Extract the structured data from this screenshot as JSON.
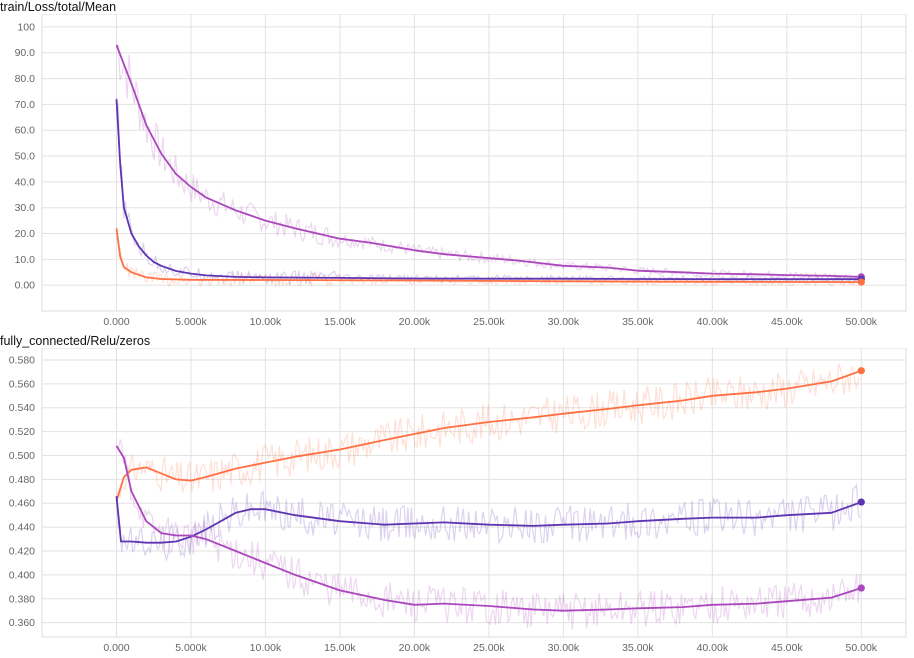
{
  "chart_data": [
    {
      "type": "line",
      "title": "train/Loss/total/Mean",
      "xlim": [
        -5000,
        53000
      ],
      "ylim": [
        -10,
        105
      ],
      "x_ticks": [
        0,
        5000,
        10000,
        15000,
        20000,
        25000,
        30000,
        35000,
        40000,
        45000,
        50000
      ],
      "x_tick_labels": [
        "0.000",
        "5.000k",
        "10.00k",
        "15.00k",
        "20.00k",
        "25.00k",
        "30.00k",
        "35.00k",
        "40.00k",
        "45.00k",
        "50.00k"
      ],
      "y_ticks": [
        0,
        10,
        20,
        30,
        40,
        50,
        60,
        70,
        80,
        90,
        100
      ],
      "y_tick_labels": [
        "0.00",
        "10.0",
        "20.0",
        "30.0",
        "40.0",
        "50.0",
        "60.0",
        "70.0",
        "80.0",
        "90.0",
        "100"
      ],
      "grid": true,
      "series": [
        {
          "color": "#ab47bc",
          "x": [
            0,
            1000,
            2000,
            3000,
            4000,
            5000,
            6000,
            8000,
            10000,
            12000,
            15000,
            17000,
            20000,
            22000,
            25000,
            27000,
            30000,
            33000,
            35000,
            38000,
            40000,
            43000,
            45000,
            48000,
            50000
          ],
          "y": [
            93,
            78,
            62,
            51,
            43,
            38,
            34,
            29,
            25,
            22,
            18,
            16.5,
            13.5,
            12,
            10.5,
            9.5,
            7.5,
            6.8,
            5.6,
            5,
            4.5,
            4.2,
            3.9,
            3.6,
            3.2
          ]
        },
        {
          "color": "#5e35b1",
          "x": [
            0,
            250,
            500,
            1000,
            1500,
            2000,
            2500,
            3000,
            4000,
            5000,
            6000,
            8000,
            10000,
            15000,
            20000,
            25000,
            30000,
            35000,
            40000,
            45000,
            50000
          ],
          "y": [
            72,
            47,
            30,
            20,
            15,
            11.5,
            9,
            7.5,
            5.5,
            4.5,
            3.8,
            3.2,
            3,
            2.8,
            2.6,
            2.5,
            2.5,
            2.4,
            2.3,
            2.3,
            2.3
          ]
        },
        {
          "color": "#ff7043",
          "x": [
            0,
            250,
            500,
            1000,
            1500,
            2000,
            3000,
            5000,
            10000,
            20000,
            30000,
            40000,
            50000
          ],
          "y": [
            22,
            11,
            7,
            5,
            4,
            3,
            2.4,
            2.1,
            2,
            1.8,
            1.5,
            1.3,
            1.2
          ]
        }
      ]
    },
    {
      "type": "line",
      "title": "fully_connected/Relu/zeros",
      "xlim": [
        -5000,
        53000
      ],
      "ylim": [
        0.348,
        0.59
      ],
      "x_ticks": [
        0,
        5000,
        10000,
        15000,
        20000,
        25000,
        30000,
        35000,
        40000,
        45000,
        50000
      ],
      "x_tick_labels": [
        "0.000",
        "5.000k",
        "10.00k",
        "15.00k",
        "20.00k",
        "25.00k",
        "30.00k",
        "35.00k",
        "40.00k",
        "45.00k",
        "50.00k"
      ],
      "y_ticks": [
        0.36,
        0.38,
        0.4,
        0.42,
        0.44,
        0.46,
        0.48,
        0.5,
        0.52,
        0.54,
        0.56,
        0.58
      ],
      "y_tick_labels": [
        "0.360",
        "0.380",
        "0.400",
        "0.420",
        "0.440",
        "0.460",
        "0.480",
        "0.500",
        "0.520",
        "0.540",
        "0.560",
        "0.580"
      ],
      "grid": true,
      "series": [
        {
          "color": "#ff7043",
          "x": [
            0,
            500,
            1000,
            2000,
            3000,
            4000,
            5000,
            6000,
            8000,
            10000,
            12000,
            15000,
            18000,
            20000,
            22000,
            25000,
            28000,
            30000,
            33000,
            35000,
            38000,
            40000,
            43000,
            45000,
            48000,
            50000
          ],
          "y": [
            0.462,
            0.482,
            0.488,
            0.49,
            0.485,
            0.48,
            0.479,
            0.482,
            0.489,
            0.494,
            0.499,
            0.505,
            0.513,
            0.518,
            0.523,
            0.528,
            0.532,
            0.535,
            0.539,
            0.542,
            0.546,
            0.55,
            0.553,
            0.556,
            0.562,
            0.571
          ]
        },
        {
          "color": "#5e35b1",
          "x": [
            0,
            300,
            1000,
            2000,
            3000,
            4000,
            5000,
            6000,
            7000,
            8000,
            9000,
            10000,
            12000,
            15000,
            18000,
            20000,
            22000,
            25000,
            28000,
            30000,
            33000,
            35000,
            38000,
            40000,
            43000,
            45000,
            48000,
            50000
          ],
          "y": [
            0.466,
            0.428,
            0.428,
            0.427,
            0.427,
            0.428,
            0.432,
            0.438,
            0.445,
            0.452,
            0.455,
            0.455,
            0.45,
            0.445,
            0.442,
            0.443,
            0.444,
            0.442,
            0.441,
            0.442,
            0.443,
            0.445,
            0.447,
            0.448,
            0.448,
            0.45,
            0.452,
            0.461
          ]
        },
        {
          "color": "#ab47bc",
          "x": [
            0,
            500,
            1000,
            2000,
            3000,
            4000,
            5000,
            6000,
            8000,
            10000,
            12000,
            15000,
            18000,
            20000,
            22000,
            25000,
            28000,
            30000,
            33000,
            35000,
            38000,
            40000,
            43000,
            45000,
            48000,
            50000
          ],
          "y": [
            0.508,
            0.498,
            0.47,
            0.445,
            0.435,
            0.433,
            0.433,
            0.43,
            0.42,
            0.41,
            0.4,
            0.387,
            0.379,
            0.375,
            0.376,
            0.374,
            0.371,
            0.37,
            0.371,
            0.372,
            0.373,
            0.375,
            0.376,
            0.378,
            0.381,
            0.389
          ]
        }
      ]
    }
  ]
}
